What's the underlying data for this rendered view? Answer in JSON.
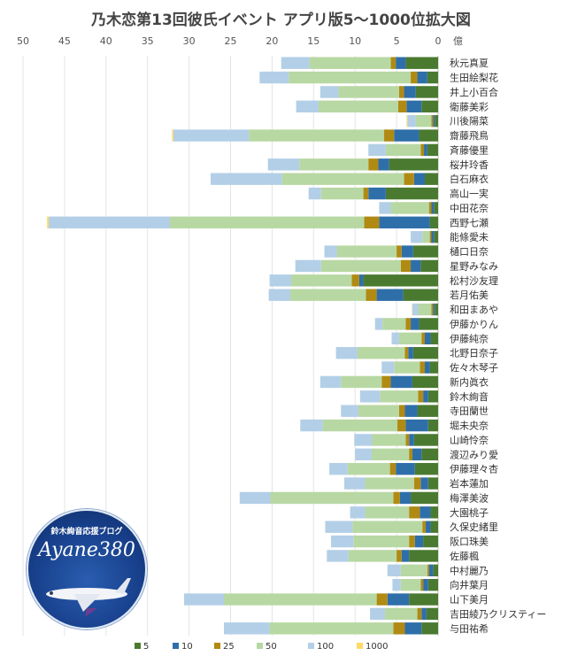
{
  "chart_data": {
    "type": "bar",
    "orientation": "horizontal",
    "stacked": true,
    "title": "乃木恋第13回彼氏イベント アプリ版5～1000位拡大図",
    "x_unit": "億",
    "xlim": [
      50,
      0
    ],
    "x_ticks": [
      "50",
      "45",
      "40",
      "35",
      "30",
      "25",
      "20",
      "15",
      "10",
      "5",
      "0"
    ],
    "legend_position": "bottom",
    "categories": [
      "秋元真夏",
      "生田絵梨花",
      "井上小百合",
      "衛藤美彩",
      "川後陽菜",
      "齋藤飛鳥",
      "斉藤優里",
      "桜井玲香",
      "白石麻衣",
      "高山一実",
      "中田花奈",
      "西野七瀬",
      "能條愛未",
      "樋口日奈",
      "星野みなみ",
      "松村沙友理",
      "若月佑美",
      "和田まあや",
      "伊藤かりん",
      "伊藤純奈",
      "北野日奈子",
      "佐々木琴子",
      "新内眞衣",
      "鈴木絢音",
      "寺田蘭世",
      "堀未央奈",
      "山崎怜奈",
      "渡辺みり愛",
      "伊藤理々杏",
      "岩本蓮加",
      "梅澤美波",
      "大園桃子",
      "久保史緒里",
      "阪口珠美",
      "佐藤楓",
      "中村麗乃",
      "向井葉月",
      "山下美月",
      "吉田綾乃クリスティー",
      "与田祐希"
    ],
    "series": [
      {
        "name": "5",
        "color": "#4a7a30",
        "values": [
          3.9,
          1.3,
          2.7,
          2.0,
          0.4,
          2.3,
          1.3,
          5.9,
          1.6,
          6.3,
          0.5,
          1.0,
          0.5,
          3.0,
          2.1,
          9.0,
          4.2,
          0.4,
          2.3,
          0.9,
          3.0,
          1.0,
          3.1,
          1.2,
          2.5,
          1.2,
          2.9,
          2.0,
          2.8,
          1.2,
          3.3,
          0.9,
          0.9,
          1.8,
          3.5,
          0.6,
          1.2,
          3.5,
          1.4,
          2.0
        ]
      },
      {
        "name": "10",
        "color": "#2e6faa",
        "values": [
          1.2,
          1.2,
          1.4,
          1.8,
          0.2,
          3.0,
          0.4,
          1.3,
          1.3,
          2.1,
          0.3,
          6.1,
          0.3,
          1.4,
          1.2,
          0.5,
          3.2,
          0.2,
          1.0,
          0.7,
          0.6,
          0.6,
          2.6,
          0.6,
          1.5,
          2.7,
          0.6,
          1.1,
          2.3,
          0.9,
          1.3,
          1.3,
          0.6,
          1.0,
          0.9,
          0.5,
          0.6,
          2.6,
          0.6,
          2.0
        ]
      },
      {
        "name": "25",
        "color": "#b08a12",
        "values": [
          0.6,
          0.8,
          0.6,
          1.0,
          0.2,
          1.2,
          0.4,
          1.2,
          1.2,
          0.6,
          0.3,
          1.8,
          0.2,
          0.6,
          1.2,
          0.9,
          1.3,
          0.2,
          0.6,
          0.4,
          0.4,
          0.6,
          1.1,
          0.6,
          0.7,
          1.0,
          0.4,
          0.4,
          0.7,
          0.8,
          0.8,
          1.3,
          0.4,
          0.7,
          0.6,
          0.2,
          0.3,
          1.3,
          0.5,
          1.4
        ]
      },
      {
        "name": "50",
        "color": "#b8d8a3",
        "values": [
          9.8,
          14.7,
          7.3,
          9.6,
          1.9,
          16.3,
          4.2,
          8.3,
          14.7,
          5.1,
          4.6,
          23.4,
          0.9,
          7.2,
          9.6,
          7.3,
          9.1,
          1.6,
          2.8,
          2.7,
          5.7,
          3.1,
          4.9,
          4.6,
          4.9,
          9.0,
          4.1,
          4.5,
          5.1,
          5.9,
          14.8,
          5.3,
          8.4,
          6.7,
          5.8,
          3.2,
          2.4,
          18.4,
          3.9,
          14.9
        ]
      },
      {
        "name": "100",
        "color": "#b3cfe7",
        "values": [
          3.4,
          3.5,
          2.2,
          2.7,
          1.0,
          9.1,
          2.1,
          3.8,
          8.6,
          1.5,
          1.4,
          14.6,
          1.4,
          1.5,
          3.1,
          2.6,
          2.6,
          0.7,
          0.9,
          0.9,
          2.6,
          1.5,
          2.5,
          2.4,
          2.1,
          2.7,
          2.1,
          2.0,
          2.2,
          2.5,
          3.7,
          1.8,
          3.3,
          2.7,
          2.6,
          1.6,
          1.0,
          4.8,
          1.8,
          5.5
        ]
      },
      {
        "name": "1000",
        "color": "#ffd966",
        "values": [
          0,
          0,
          0,
          0,
          0.1,
          0.15,
          0,
          0,
          0,
          0,
          0,
          0.2,
          0,
          0,
          0,
          0,
          0,
          0.05,
          0,
          0,
          0,
          0,
          0,
          0,
          0,
          0,
          0,
          0,
          0,
          0,
          0,
          0,
          0,
          0,
          0,
          0,
          0,
          0,
          0,
          0
        ]
      }
    ]
  },
  "badge": {
    "top_text": "鈴木絢音応援ブログ",
    "main_text": "Ayane380"
  }
}
